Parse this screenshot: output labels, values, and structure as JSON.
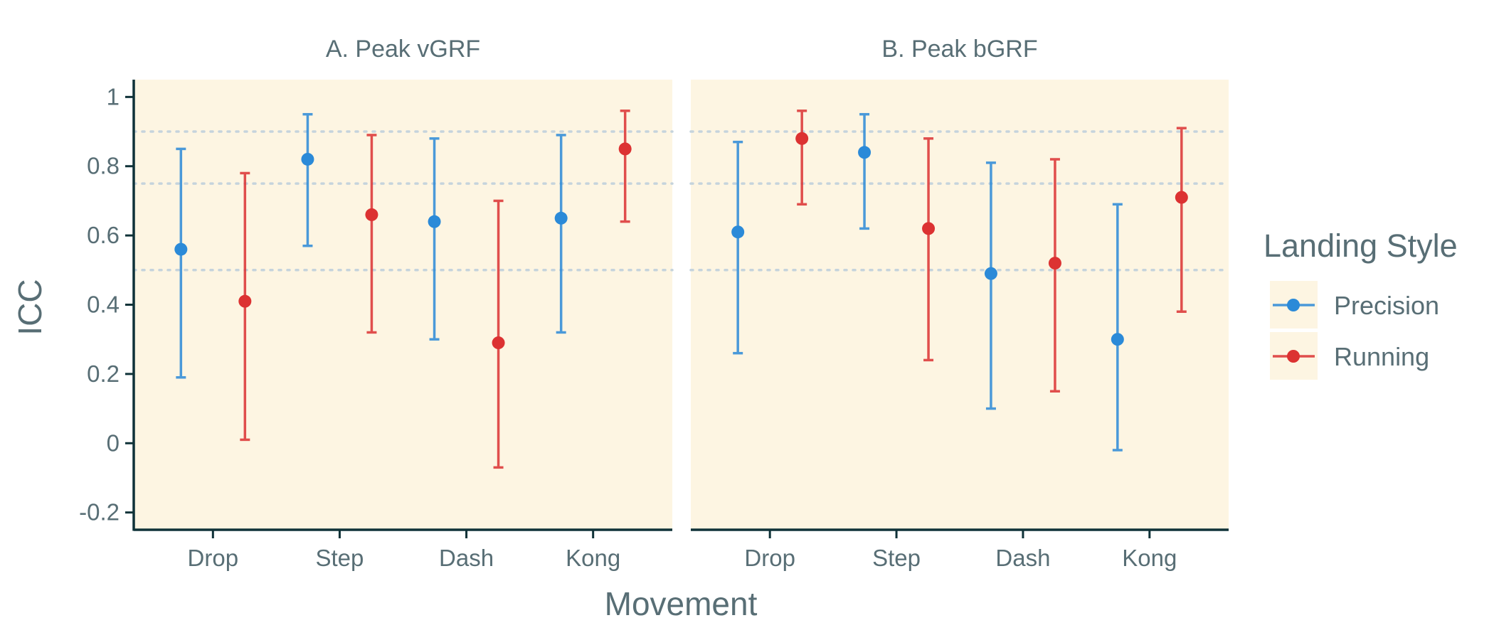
{
  "chart_data": {
    "type": "scatter",
    "subtype": "point-errorbar",
    "xlabel": "Movement",
    "ylabel": "ICC",
    "ylim": [
      -0.25,
      1.05
    ],
    "yticks": [
      -0.2,
      0,
      0.2,
      0.4,
      0.6,
      0.8,
      1
    ],
    "ytick_labels": [
      "-0.2",
      "0",
      "0.2",
      "0.4",
      "0.6",
      "0.8",
      "1"
    ],
    "reference_lines": [
      0.5,
      0.75,
      0.9
    ],
    "categories": [
      "Drop",
      "Step",
      "Dash",
      "Kong"
    ],
    "legend": {
      "title": "Landing Style",
      "placement": "right",
      "entries": [
        "Precision",
        "Running"
      ]
    },
    "colors": {
      "Precision": "#2b8ad8",
      "Running": "#dc3232",
      "panel_bg": "#fdf5e2",
      "axis": "#0f3238",
      "ref_line": "#c5d3dc"
    },
    "panels": [
      {
        "title": "A. Peak vGRF",
        "series": [
          {
            "name": "Precision",
            "values": [
              0.56,
              0.82,
              0.64,
              0.65
            ],
            "lower": [
              0.19,
              0.57,
              0.3,
              0.32
            ],
            "upper": [
              0.85,
              0.95,
              0.88,
              0.89
            ]
          },
          {
            "name": "Running",
            "values": [
              0.41,
              0.66,
              0.29,
              0.85
            ],
            "lower": [
              0.01,
              0.32,
              -0.07,
              0.64
            ],
            "upper": [
              0.78,
              0.89,
              0.7,
              0.96
            ]
          }
        ]
      },
      {
        "title": "B. Peak bGRF",
        "series": [
          {
            "name": "Precision",
            "values": [
              0.61,
              0.84,
              0.49,
              0.3
            ],
            "lower": [
              0.26,
              0.62,
              0.1,
              -0.02
            ],
            "upper": [
              0.87,
              0.95,
              0.81,
              0.69
            ]
          },
          {
            "name": "Running",
            "values": [
              0.88,
              0.62,
              0.52,
              0.71
            ],
            "lower": [
              0.69,
              0.24,
              0.15,
              0.38
            ],
            "upper": [
              0.96,
              0.88,
              0.82,
              0.91
            ]
          }
        ]
      }
    ]
  }
}
